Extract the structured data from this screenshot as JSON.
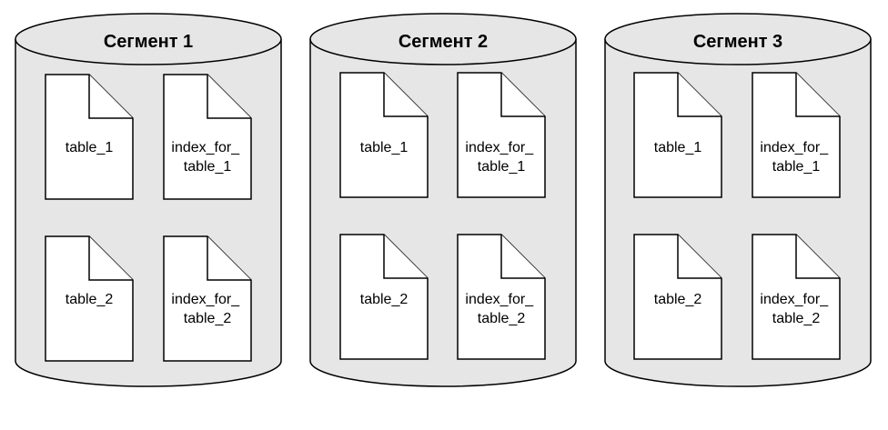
{
  "segments": [
    {
      "title": "Сегмент 1",
      "files": [
        {
          "lines": [
            "table_1"
          ]
        },
        {
          "lines": [
            "index_for_",
            "table_1"
          ]
        },
        {
          "lines": [
            "table_2"
          ]
        },
        {
          "lines": [
            "index_for_",
            "table_2"
          ]
        }
      ]
    },
    {
      "title": "Сегмент 2",
      "files": [
        {
          "lines": [
            "table_1"
          ]
        },
        {
          "lines": [
            "index_for_",
            "table_1"
          ]
        },
        {
          "lines": [
            "table_2"
          ]
        },
        {
          "lines": [
            "index_for_",
            "table_2"
          ]
        }
      ]
    },
    {
      "title": "Сегмент 3",
      "files": [
        {
          "lines": [
            "table_1"
          ]
        },
        {
          "lines": [
            "index_for_",
            "table_1"
          ]
        },
        {
          "lines": [
            "table_2"
          ]
        },
        {
          "lines": [
            "index_for_",
            "table_2"
          ]
        }
      ]
    }
  ],
  "icons": {
    "segment": "database-cylinder-icon",
    "file": "document-icon"
  }
}
